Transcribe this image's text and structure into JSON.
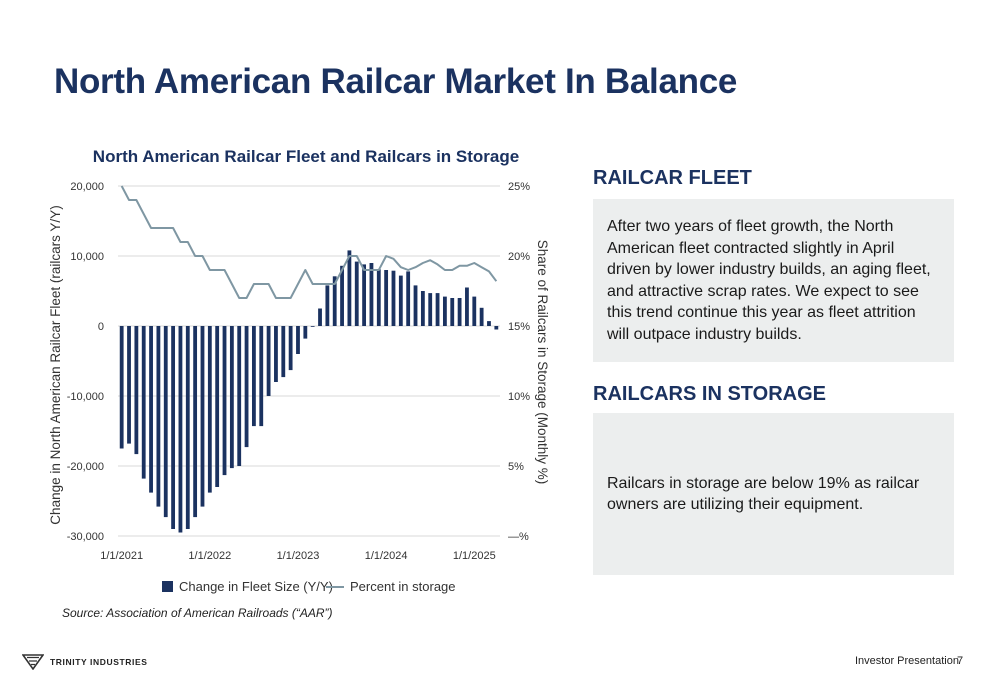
{
  "page": {
    "title": "North American Railcar Market In Balance",
    "source": "Source: Association of American Railroads (“AAR”)",
    "footer_label": "Investor Presentation",
    "page_number": "7",
    "logo_text": "TRINITY INDUSTRIES"
  },
  "sections": {
    "fleet": {
      "heading": "RAILCAR FLEET",
      "body": "After two years of fleet growth, the North American fleet contracted slightly in April driven by lower industry builds, an aging fleet, and attractive scrap rates. We expect to see this trend continue this year as fleet attrition will outpace industry builds."
    },
    "storage": {
      "heading": "RAILCARS IN STORAGE",
      "body": "Railcars in storage are below 19% as railcar owners are utilizing their equipment."
    }
  },
  "colors": {
    "bar": "#1b3260",
    "line": "#7f97a3",
    "grid": "#d9d9d9",
    "title": "#1b3260"
  },
  "chart_data": {
    "type": "bar",
    "title": "North American Railcar Fleet and Railcars in Storage",
    "ylabel": "Change in North American Railcar Fleet (railcars Y/Y)",
    "y2label": "Share of Railcars in Storage (Monthly %)",
    "ylim": [
      -30000,
      20000
    ],
    "y2lim": [
      0,
      25
    ],
    "yticks": [
      "20,000",
      "10,000",
      "0",
      "-10,000",
      "-20,000",
      "-30,000"
    ],
    "y2ticks": [
      "25%",
      "20%",
      "15%",
      "10%",
      "5%",
      "—%"
    ],
    "xticks": [
      "1/1/2021",
      "1/1/2022",
      "1/1/2023",
      "1/1/2024",
      "1/1/2025"
    ],
    "grid": true,
    "legend_position": "bottom",
    "series": [
      {
        "name": "Change in Fleet Size (Y/Y)",
        "type": "bar",
        "axis": "left",
        "values": [
          -17500,
          -16800,
          -18300,
          -21800,
          -23800,
          -25800,
          -27300,
          -29000,
          -29500,
          -29000,
          -27300,
          -25800,
          -23800,
          -23000,
          -21300,
          -20300,
          -20000,
          -17300,
          -14300,
          -14300,
          -10000,
          -8000,
          -7300,
          -6300,
          -4000,
          -1800,
          0,
          2500,
          5800,
          7100,
          8600,
          10800,
          9200,
          8800,
          9000,
          8100,
          8000,
          7900,
          7200,
          7800,
          5800,
          5000,
          4700,
          4700,
          4200,
          4000,
          4000,
          5500,
          4200,
          2600,
          700,
          -500
        ]
      },
      {
        "name": "Percent in storage",
        "type": "line",
        "axis": "right",
        "values": [
          25,
          24,
          24,
          23,
          22,
          22,
          22,
          22,
          21,
          21,
          20,
          20,
          19,
          19,
          19,
          18,
          17,
          17,
          18,
          18,
          18,
          17,
          17,
          17,
          18,
          19,
          18,
          18,
          18,
          18,
          19,
          20,
          20,
          19,
          19,
          19,
          20,
          19.8,
          19.2,
          19,
          19.2,
          19.5,
          19.7,
          19.4,
          19,
          19,
          19.3,
          19.3,
          19.5,
          19.2,
          18.9,
          18.2
        ]
      }
    ]
  }
}
